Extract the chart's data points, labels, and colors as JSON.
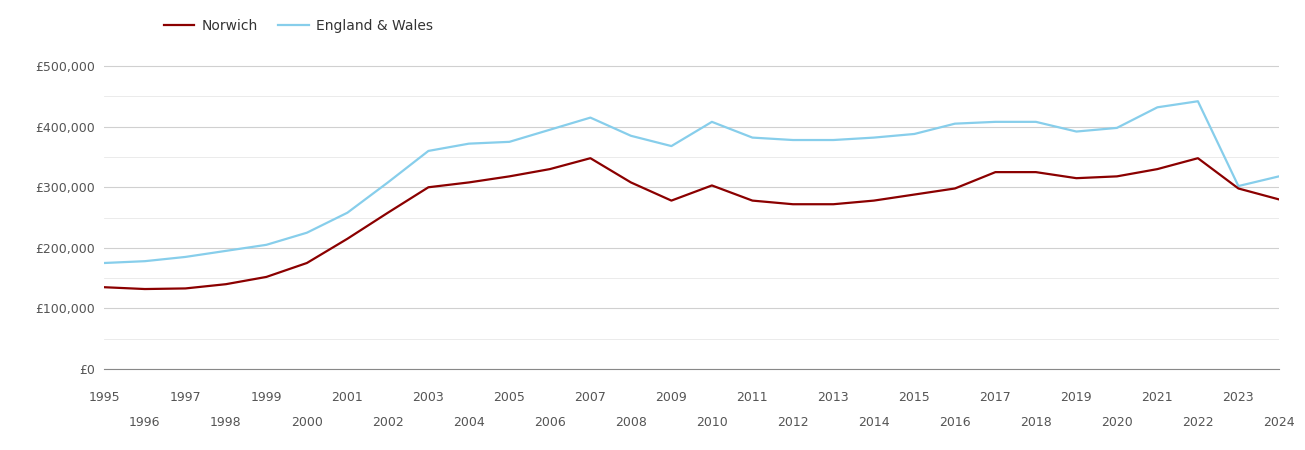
{
  "years": [
    1995,
    1996,
    1997,
    1998,
    1999,
    2000,
    2001,
    2002,
    2003,
    2004,
    2005,
    2006,
    2007,
    2008,
    2009,
    2010,
    2011,
    2012,
    2013,
    2014,
    2015,
    2016,
    2017,
    2018,
    2019,
    2020,
    2021,
    2022,
    2023,
    2024
  ],
  "norwich": [
    135000,
    132000,
    133000,
    140000,
    152000,
    175000,
    215000,
    258000,
    300000,
    308000,
    318000,
    330000,
    348000,
    308000,
    278000,
    303000,
    278000,
    272000,
    272000,
    278000,
    288000,
    298000,
    325000,
    325000,
    315000,
    318000,
    330000,
    348000,
    298000,
    280000
  ],
  "england_wales": [
    175000,
    178000,
    185000,
    195000,
    205000,
    225000,
    258000,
    308000,
    360000,
    372000,
    375000,
    395000,
    415000,
    385000,
    368000,
    408000,
    382000,
    378000,
    378000,
    382000,
    388000,
    405000,
    408000,
    408000,
    392000,
    398000,
    432000,
    442000,
    302000,
    318000
  ],
  "norwich_color": "#8B0000",
  "ew_color": "#87CEEB",
  "background_color": "#ffffff",
  "grid_color": "#d0d0d0",
  "minor_grid_color": "#e8e8e8",
  "ylim": [
    0,
    520000
  ],
  "yticks": [
    0,
    100000,
    200000,
    300000,
    400000,
    500000
  ],
  "ytick_labels": [
    "£0",
    "£100,000",
    "£200,000",
    "£300,000",
    "£400,000",
    "£500,000"
  ],
  "legend_norwich": "Norwich",
  "legend_ew": "England & Wales",
  "line_width": 1.6,
  "legend_fontsize": 10,
  "tick_fontsize": 9
}
